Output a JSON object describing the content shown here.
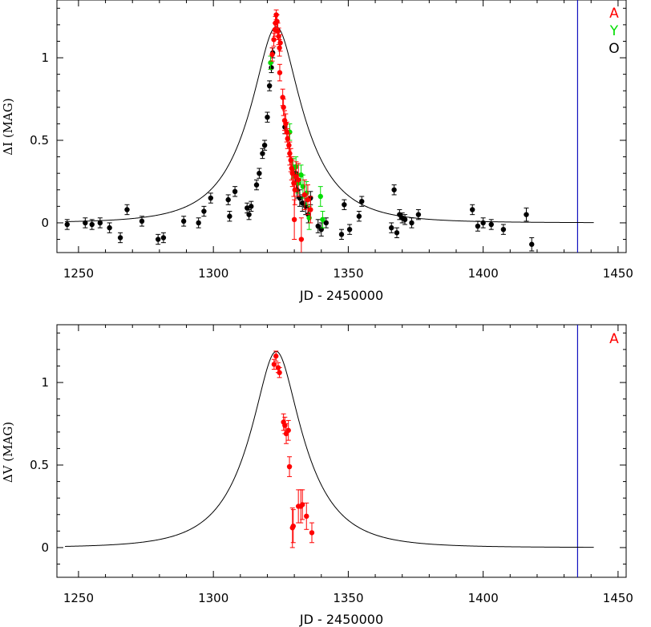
{
  "chart_data": [
    {
      "type": "scatter",
      "title": "",
      "xlabel": "JD - 2450000",
      "ylabel": "ΔI (MAG)",
      "xlim": [
        1242,
        1453
      ],
      "ylim": [
        -0.18,
        1.35
      ],
      "xticks": [
        1250,
        1300,
        1350,
        1400,
        1450
      ],
      "yticks": [
        0,
        0.5,
        1
      ],
      "ytick_labels": [
        "0",
        "0.5",
        "1"
      ],
      "grid": false,
      "legend_placement": "top-right",
      "vertical_line_x": 1435,
      "vertical_line_color": "#1010c0",
      "model_curve": {
        "t0": 1323.3,
        "u0": 0.35,
        "tE": 20,
        "baseline": 0,
        "xrange": [
          1245,
          1441
        ]
      },
      "series": [
        {
          "name": "A",
          "color": "#ff0000",
          "points": [
            {
              "x": 1321.8,
              "y": 1.02,
              "err": 0.04
            },
            {
              "x": 1322.4,
              "y": 1.11,
              "err": 0.04
            },
            {
              "x": 1322.8,
              "y": 1.17,
              "err": 0.04
            },
            {
              "x": 1323.0,
              "y": 1.21,
              "err": 0.04
            },
            {
              "x": 1323.3,
              "y": 1.26,
              "err": 0.03
            },
            {
              "x": 1323.6,
              "y": 1.22,
              "err": 0.04
            },
            {
              "x": 1323.9,
              "y": 1.16,
              "err": 0.05
            },
            {
              "x": 1324.2,
              "y": 1.13,
              "err": 0.05
            },
            {
              "x": 1324.5,
              "y": 1.06,
              "err": 0.05
            },
            {
              "x": 1324.8,
              "y": 1.09,
              "err": 0.05
            },
            {
              "x": 1324.6,
              "y": 0.91,
              "err": 0.05
            },
            {
              "x": 1325.7,
              "y": 0.76,
              "err": 0.05
            },
            {
              "x": 1326.0,
              "y": 0.7,
              "err": 0.05
            },
            {
              "x": 1326.4,
              "y": 0.62,
              "err": 0.06
            },
            {
              "x": 1326.8,
              "y": 0.6,
              "err": 0.06
            },
            {
              "x": 1327.2,
              "y": 0.55,
              "err": 0.06
            },
            {
              "x": 1327.5,
              "y": 0.51,
              "err": 0.06
            },
            {
              "x": 1328.0,
              "y": 0.47,
              "err": 0.07
            },
            {
              "x": 1328.3,
              "y": 0.42,
              "err": 0.07
            },
            {
              "x": 1328.7,
              "y": 0.38,
              "err": 0.07
            },
            {
              "x": 1329.0,
              "y": 0.33,
              "err": 0.07
            },
            {
              "x": 1329.3,
              "y": 0.3,
              "err": 0.08
            },
            {
              "x": 1329.8,
              "y": 0.24,
              "err": 0.08
            },
            {
              "x": 1330.2,
              "y": 0.2,
              "err": 0.09
            },
            {
              "x": 1330.7,
              "y": 0.28,
              "err": 0.09
            },
            {
              "x": 1330.0,
              "y": 0.02,
              "err": 0.12
            },
            {
              "x": 1331.5,
              "y": 0.26,
              "err": 0.1
            },
            {
              "x": 1332.6,
              "y": -0.1,
              "err": 0.13
            },
            {
              "x": 1333.8,
              "y": 0.17,
              "err": 0.09
            },
            {
              "x": 1335.0,
              "y": 0.14,
              "err": 0.09
            },
            {
              "x": 1336.0,
              "y": 0.08,
              "err": 0.08
            }
          ]
        },
        {
          "name": "Y",
          "color": "#00dd00",
          "points": [
            {
              "x": 1321.2,
              "y": 0.97,
              "err": 0.04
            },
            {
              "x": 1328.3,
              "y": 0.55,
              "err": 0.05
            },
            {
              "x": 1329.5,
              "y": 0.33,
              "err": 0.06
            },
            {
              "x": 1330.6,
              "y": 0.34,
              "err": 0.06
            },
            {
              "x": 1331.4,
              "y": 0.24,
              "err": 0.06
            },
            {
              "x": 1332.5,
              "y": 0.29,
              "err": 0.06
            },
            {
              "x": 1333.2,
              "y": 0.22,
              "err": 0.07
            },
            {
              "x": 1334.5,
              "y": 0.18,
              "err": 0.07
            },
            {
              "x": 1335.5,
              "y": 0.03,
              "err": 0.07
            },
            {
              "x": 1339.7,
              "y": 0.16,
              "err": 0.06
            },
            {
              "x": 1340.5,
              "y": 0.02,
              "err": 0.05
            }
          ]
        },
        {
          "name": "O",
          "color": "#000000",
          "points": [
            {
              "x": 1245.8,
              "y": -0.01,
              "err": 0.03
            },
            {
              "x": 1252.5,
              "y": 0.0,
              "err": 0.03
            },
            {
              "x": 1255.0,
              "y": -0.01,
              "err": 0.03
            },
            {
              "x": 1258.0,
              "y": 0.0,
              "err": 0.03
            },
            {
              "x": 1261.5,
              "y": -0.03,
              "err": 0.03
            },
            {
              "x": 1265.5,
              "y": -0.09,
              "err": 0.03
            },
            {
              "x": 1268.0,
              "y": 0.08,
              "err": 0.03
            },
            {
              "x": 1273.5,
              "y": 0.01,
              "err": 0.03
            },
            {
              "x": 1279.5,
              "y": -0.1,
              "err": 0.03
            },
            {
              "x": 1281.5,
              "y": -0.09,
              "err": 0.03
            },
            {
              "x": 1289.0,
              "y": 0.01,
              "err": 0.03
            },
            {
              "x": 1294.5,
              "y": 0.0,
              "err": 0.03
            },
            {
              "x": 1296.5,
              "y": 0.07,
              "err": 0.03
            },
            {
              "x": 1299.0,
              "y": 0.15,
              "err": 0.03
            },
            {
              "x": 1305.5,
              "y": 0.14,
              "err": 0.03
            },
            {
              "x": 1306.0,
              "y": 0.04,
              "err": 0.03
            },
            {
              "x": 1308.0,
              "y": 0.19,
              "err": 0.03
            },
            {
              "x": 1312.5,
              "y": 0.09,
              "err": 0.03
            },
            {
              "x": 1313.2,
              "y": 0.05,
              "err": 0.03
            },
            {
              "x": 1314.0,
              "y": 0.1,
              "err": 0.03
            },
            {
              "x": 1316.0,
              "y": 0.23,
              "err": 0.03
            },
            {
              "x": 1317.0,
              "y": 0.3,
              "err": 0.03
            },
            {
              "x": 1318.2,
              "y": 0.42,
              "err": 0.03
            },
            {
              "x": 1319.0,
              "y": 0.47,
              "err": 0.03
            },
            {
              "x": 1320.0,
              "y": 0.64,
              "err": 0.03
            },
            {
              "x": 1320.8,
              "y": 0.83,
              "err": 0.03
            },
            {
              "x": 1321.5,
              "y": 0.94,
              "err": 0.03
            },
            {
              "x": 1322.0,
              "y": 1.03,
              "err": 0.03
            },
            {
              "x": 1326.5,
              "y": 0.58,
              "err": 0.04
            },
            {
              "x": 1330.5,
              "y": 0.3,
              "err": 0.05
            },
            {
              "x": 1331.0,
              "y": 0.2,
              "err": 0.05
            },
            {
              "x": 1332.0,
              "y": 0.15,
              "err": 0.05
            },
            {
              "x": 1333.0,
              "y": 0.12,
              "err": 0.05
            },
            {
              "x": 1334.2,
              "y": 0.1,
              "err": 0.05
            },
            {
              "x": 1335.2,
              "y": 0.05,
              "err": 0.05
            },
            {
              "x": 1336.0,
              "y": 0.15,
              "err": 0.04
            },
            {
              "x": 1338.8,
              "y": -0.02,
              "err": 0.04
            },
            {
              "x": 1340.0,
              "y": -0.04,
              "err": 0.04
            },
            {
              "x": 1341.8,
              "y": 0.0,
              "err": 0.03
            },
            {
              "x": 1347.5,
              "y": -0.07,
              "err": 0.03
            },
            {
              "x": 1348.5,
              "y": 0.11,
              "err": 0.03
            },
            {
              "x": 1350.5,
              "y": -0.04,
              "err": 0.03
            },
            {
              "x": 1354.0,
              "y": 0.04,
              "err": 0.03
            },
            {
              "x": 1355.0,
              "y": 0.13,
              "err": 0.03
            },
            {
              "x": 1366.0,
              "y": -0.03,
              "err": 0.03
            },
            {
              "x": 1367.0,
              "y": 0.2,
              "err": 0.03
            },
            {
              "x": 1368.0,
              "y": -0.06,
              "err": 0.03
            },
            {
              "x": 1369.0,
              "y": 0.05,
              "err": 0.03
            },
            {
              "x": 1370.0,
              "y": 0.03,
              "err": 0.03
            },
            {
              "x": 1371.0,
              "y": 0.02,
              "err": 0.03
            },
            {
              "x": 1373.5,
              "y": 0.0,
              "err": 0.03
            },
            {
              "x": 1376.0,
              "y": 0.05,
              "err": 0.03
            },
            {
              "x": 1396.0,
              "y": 0.08,
              "err": 0.03
            },
            {
              "x": 1398.0,
              "y": -0.02,
              "err": 0.03
            },
            {
              "x": 1400.0,
              "y": 0.0,
              "err": 0.03
            },
            {
              "x": 1403.0,
              "y": -0.01,
              "err": 0.03
            },
            {
              "x": 1407.5,
              "y": -0.04,
              "err": 0.03
            },
            {
              "x": 1416.0,
              "y": 0.05,
              "err": 0.04
            },
            {
              "x": 1418.0,
              "y": -0.13,
              "err": 0.04
            }
          ]
        }
      ]
    },
    {
      "type": "scatter",
      "title": "",
      "xlabel": "JD - 2450000",
      "ylabel": "ΔV (MAG)",
      "xlim": [
        1242,
        1453
      ],
      "ylim": [
        -0.18,
        1.35
      ],
      "xticks": [
        1250,
        1300,
        1350,
        1400,
        1450
      ],
      "yticks": [
        0,
        0.5,
        1
      ],
      "ytick_labels": [
        "0",
        "0.5",
        "1"
      ],
      "grid": false,
      "legend_placement": "top-right",
      "vertical_line_x": 1435,
      "vertical_line_color": "#1010c0",
      "model_curve": {
        "t0": 1323.3,
        "u0": 0.35,
        "tE": 20,
        "baseline": 0,
        "xrange": [
          1245,
          1441
        ]
      },
      "series": [
        {
          "name": "A",
          "color": "#ff0000",
          "points": [
            {
              "x": 1322.5,
              "y": 1.11,
              "err": 0.03
            },
            {
              "x": 1323.2,
              "y": 1.16,
              "err": 0.03
            },
            {
              "x": 1324.0,
              "y": 1.09,
              "err": 0.03
            },
            {
              "x": 1324.5,
              "y": 1.06,
              "err": 0.03
            },
            {
              "x": 1326.0,
              "y": 0.76,
              "err": 0.05
            },
            {
              "x": 1326.5,
              "y": 0.74,
              "err": 0.05
            },
            {
              "x": 1327.0,
              "y": 0.69,
              "err": 0.06
            },
            {
              "x": 1327.8,
              "y": 0.71,
              "err": 0.06
            },
            {
              "x": 1328.2,
              "y": 0.49,
              "err": 0.06
            },
            {
              "x": 1329.3,
              "y": 0.12,
              "err": 0.12
            },
            {
              "x": 1329.6,
              "y": 0.13,
              "err": 0.1
            },
            {
              "x": 1331.5,
              "y": 0.25,
              "err": 0.1
            },
            {
              "x": 1332.4,
              "y": 0.25,
              "err": 0.1
            },
            {
              "x": 1333.0,
              "y": 0.26,
              "err": 0.09
            },
            {
              "x": 1334.5,
              "y": 0.19,
              "err": 0.08
            },
            {
              "x": 1336.5,
              "y": 0.09,
              "err": 0.06
            }
          ]
        }
      ]
    }
  ]
}
